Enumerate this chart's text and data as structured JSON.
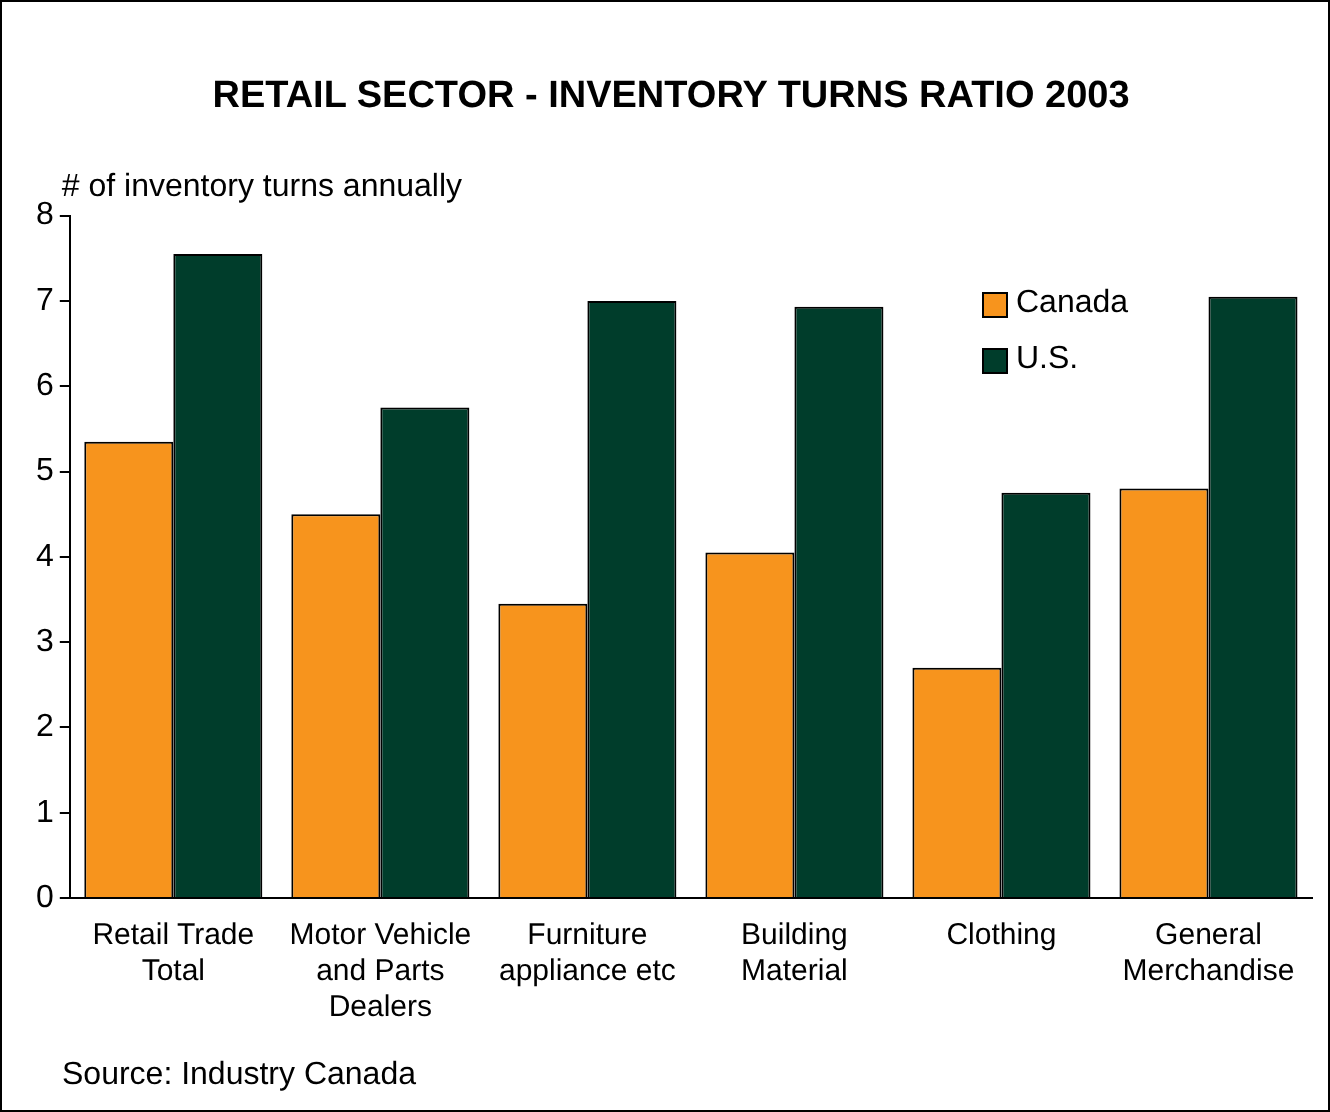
{
  "chart_data": {
    "type": "bar",
    "title": "RETAIL SECTOR - INVENTORY TURNS RATIO 2003",
    "ylabel": "# of inventory turns annually",
    "categories": [
      "Retail Trade Total",
      "Motor Vehicle and Parts Dealers",
      "Furniture appliance etc",
      "Building Material",
      "Clothing",
      "General Merchandise"
    ],
    "series": [
      {
        "name": "Canada",
        "color": "#f7941d",
        "values": [
          5.35,
          4.5,
          3.45,
          4.05,
          2.7,
          4.8
        ]
      },
      {
        "name": "U.S.",
        "color": "#003d2b",
        "values": [
          7.55,
          5.75,
          7.0,
          6.93,
          4.75,
          7.05
        ]
      }
    ],
    "ylim": [
      0,
      8
    ],
    "yticks": [
      0,
      1,
      2,
      3,
      4,
      5,
      6,
      7,
      8
    ],
    "grid": false,
    "legend": "top right",
    "annotations": [
      "Source: Industry Canada"
    ]
  }
}
